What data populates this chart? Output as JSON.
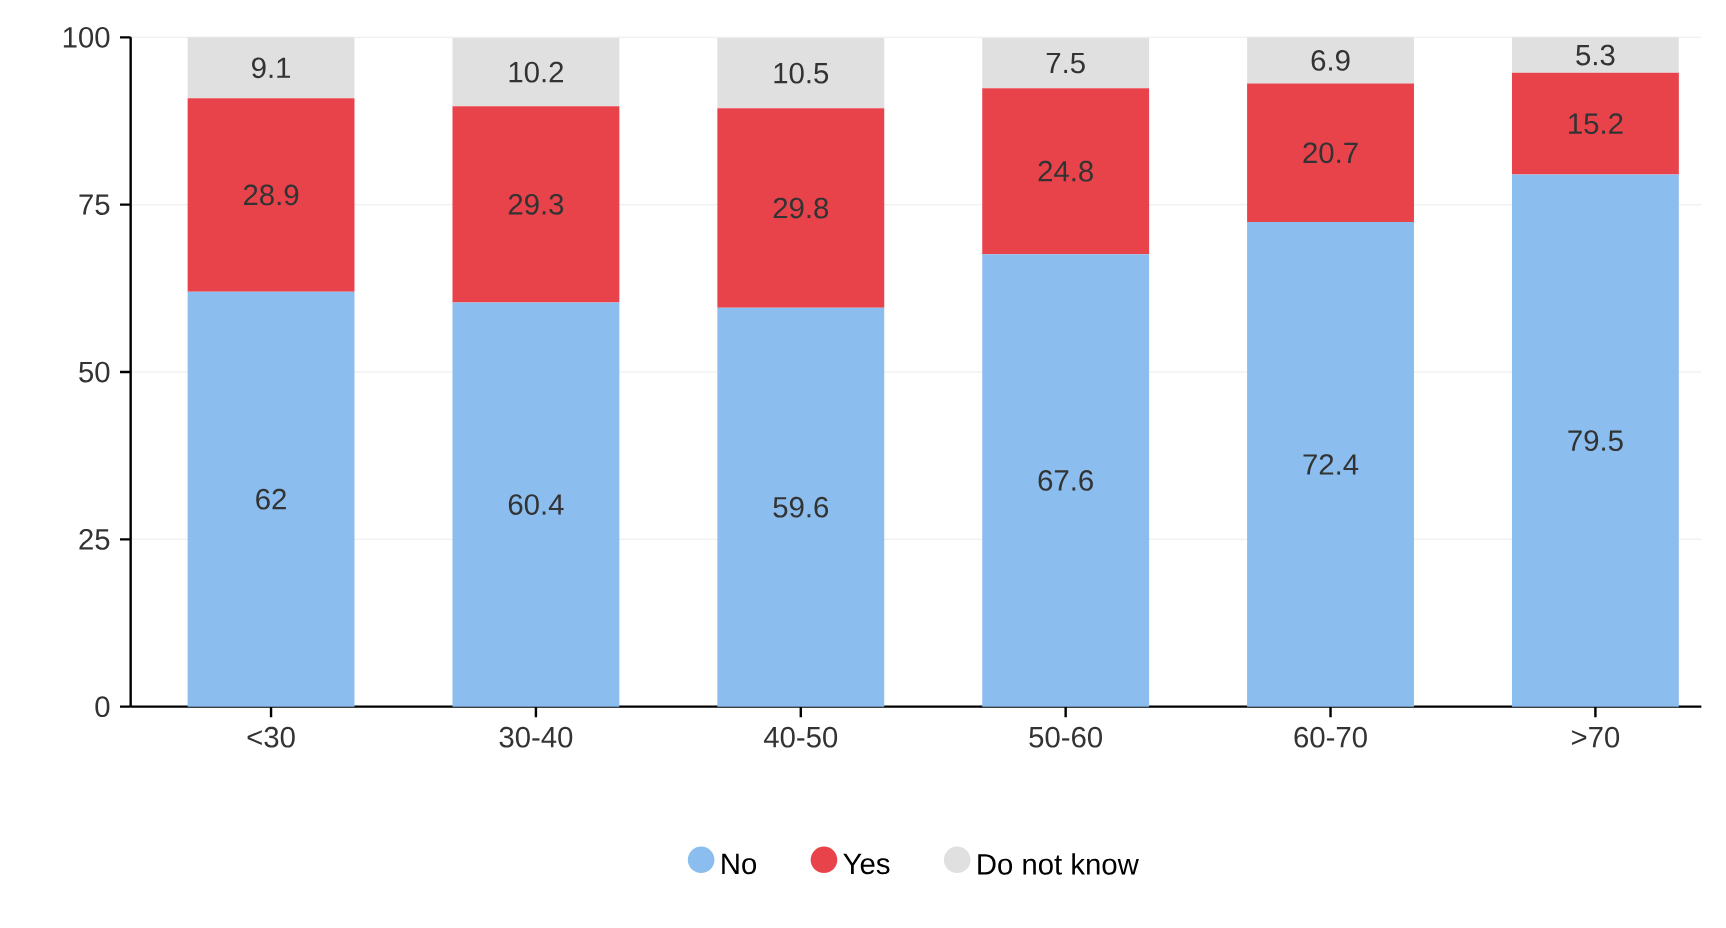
{
  "chart_data": {
    "type": "bar",
    "stacked": true,
    "categories": [
      "<30",
      "30-40",
      "40-50",
      "50-60",
      "60-70",
      ">70"
    ],
    "series": [
      {
        "name": "No",
        "color": "#8bbdee",
        "values": [
          62,
          60.4,
          59.6,
          67.6,
          72.4,
          79.5
        ]
      },
      {
        "name": "Yes",
        "color": "#e8434b",
        "values": [
          28.9,
          29.3,
          29.8,
          24.8,
          20.7,
          15.2
        ]
      },
      {
        "name": "Do not know",
        "color": "#e0e0e0",
        "values": [
          9.1,
          10.2,
          10.5,
          7.5,
          6.9,
          5.3
        ]
      }
    ],
    "ylim": [
      0,
      100
    ],
    "yticks": [
      0,
      25,
      50,
      75,
      100
    ],
    "grid": "y",
    "legend": "bottom",
    "marker": "circle",
    "data_labels": true
  }
}
